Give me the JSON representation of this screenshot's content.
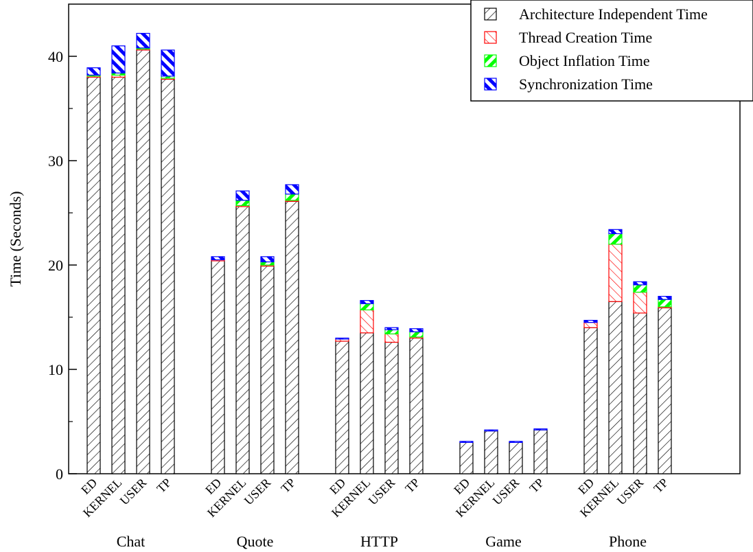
{
  "chart_data": {
    "type": "bar",
    "stacked": true,
    "title": "",
    "xlabel": "",
    "ylabel": "Time (Seconds)",
    "ylim": [
      0,
      45
    ],
    "yticks": [
      0,
      10,
      20,
      30,
      40
    ],
    "grid": false,
    "legend_position": "top-right",
    "groups": [
      {
        "name": "Chat",
        "categories": [
          "ED",
          "KERNEL",
          "USER",
          "TP"
        ]
      },
      {
        "name": "Quote",
        "categories": [
          "ED",
          "KERNEL",
          "USER",
          "TP"
        ]
      },
      {
        "name": "HTTP",
        "categories": [
          "ED",
          "KERNEL",
          "USER",
          "TP"
        ]
      },
      {
        "name": "Game",
        "categories": [
          "ED",
          "KERNEL",
          "USER",
          "TP"
        ]
      },
      {
        "name": "Phone",
        "categories": [
          "ED",
          "KERNEL",
          "USER",
          "TP"
        ]
      }
    ],
    "series": [
      {
        "name": "Architecture Independent Time",
        "color": "#000000",
        "pattern": "hatch-ne",
        "values": [
          38.0,
          38.0,
          40.6,
          37.8,
          20.4,
          25.6,
          19.9,
          26.1,
          12.7,
          13.5,
          12.6,
          13.0,
          3.0,
          4.1,
          3.0,
          4.2,
          14.0,
          16.5,
          15.4,
          15.9
        ]
      },
      {
        "name": "Thread Creation Time",
        "color": "#ff0000",
        "pattern": "hatch-nw",
        "values": [
          0.1,
          0.2,
          0.1,
          0.1,
          0.1,
          0.1,
          0.1,
          0.1,
          0.2,
          2.2,
          0.8,
          0.1,
          0.0,
          0.0,
          0.0,
          0.0,
          0.5,
          5.5,
          2.0,
          0.1
        ]
      },
      {
        "name": "Object Inflation Time",
        "color": "#00ff00",
        "pattern": "hatch-ne-thick",
        "values": [
          0.1,
          0.2,
          0.1,
          0.2,
          0.0,
          0.5,
          0.3,
          0.6,
          0.0,
          0.6,
          0.4,
          0.5,
          0.0,
          0.0,
          0.0,
          0.0,
          0.0,
          1.0,
          0.7,
          0.7
        ]
      },
      {
        "name": "Synchronization Time",
        "color": "#0000ff",
        "pattern": "hatch-nw-thick",
        "values": [
          0.7,
          2.6,
          1.4,
          2.5,
          0.3,
          0.9,
          0.5,
          0.9,
          0.1,
          0.3,
          0.2,
          0.3,
          0.1,
          0.1,
          0.1,
          0.1,
          0.2,
          0.4,
          0.3,
          0.3
        ]
      }
    ]
  }
}
